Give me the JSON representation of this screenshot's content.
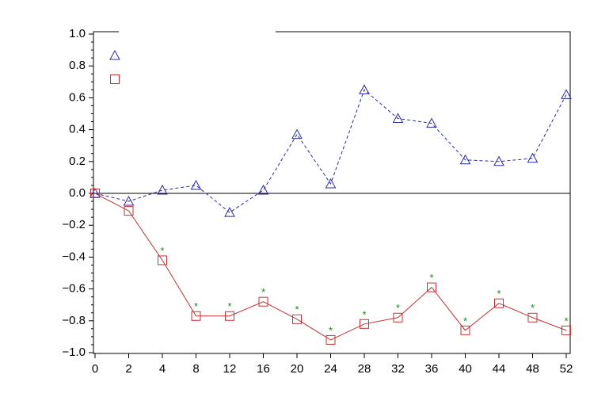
{
  "chart_data": {
    "type": "line",
    "categories": [
      "0",
      "2",
      "4",
      "8",
      "12",
      "16",
      "20",
      "24",
      "28",
      "32",
      "36",
      "40",
      "44",
      "48",
      "52"
    ],
    "series": [
      {
        "color": "#2a2aa8",
        "marker": "triangle",
        "dash": true,
        "values": [
          0,
          -0.05,
          0.02,
          0.05,
          -0.12,
          0.02,
          0.37,
          0.06,
          0.65,
          0.47,
          0.44,
          0.21,
          0.2,
          0.22,
          0.62
        ]
      },
      {
        "color": "#c83232",
        "marker": "square",
        "dash": false,
        "values": [
          0,
          -0.11,
          -0.42,
          -0.77,
          -0.77,
          -0.68,
          -0.79,
          -0.92,
          -0.82,
          -0.78,
          -0.59,
          -0.86,
          -0.69,
          -0.78,
          -0.86
        ],
        "annotations": [
          null,
          null,
          "*",
          "*",
          "*",
          "*",
          "*",
          "*",
          "*",
          "*",
          "*",
          "*",
          "*",
          "*",
          "*"
        ],
        "annotation_color": "#1f8a1f"
      }
    ],
    "ylim": [
      -1.0,
      1.0
    ],
    "yticks": [
      {
        "value": 1.0,
        "label": "1.0"
      },
      {
        "value": 0.8,
        "label": "0.8"
      },
      {
        "value": 0.6,
        "label": "0.6"
      },
      {
        "value": 0.4,
        "label": "0.4"
      },
      {
        "value": 0.2,
        "label": "0.2"
      },
      {
        "value": 0.0,
        "label": "0.0"
      },
      {
        "value": -0.2,
        "label": "−0.2"
      },
      {
        "value": -0.4,
        "label": "−0.4"
      },
      {
        "value": -0.6,
        "label": "−0.6"
      },
      {
        "value": -0.8,
        "label": "−0.8"
      },
      {
        "value": -1.0,
        "label": "−1.0"
      }
    ],
    "reference_line": 0,
    "legend": "top-left"
  }
}
